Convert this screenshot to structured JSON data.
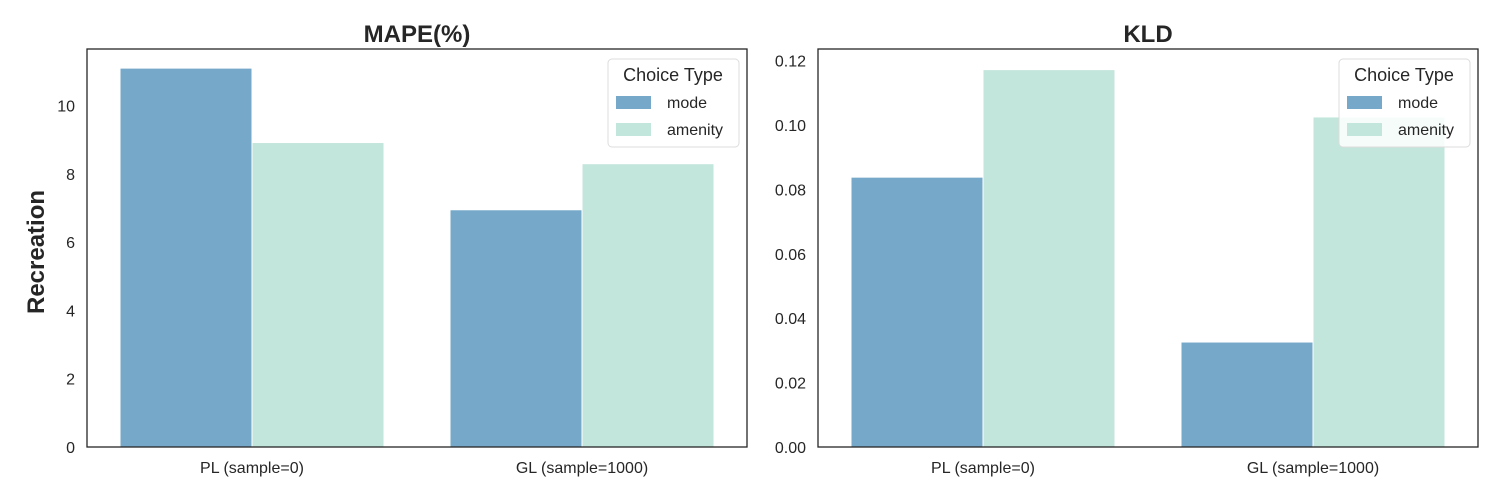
{
  "chart_data": [
    {
      "type": "bar",
      "title": "MAPE(%)",
      "ylabel": "Recreation",
      "xlabel": "",
      "categories": [
        "PL (sample=0)",
        "GL (sample=1000)"
      ],
      "series": [
        {
          "name": "mode",
          "values": [
            11.1,
            6.95
          ],
          "color": "#75a8c9"
        },
        {
          "name": "amenity",
          "values": [
            8.92,
            8.3
          ],
          "color": "#c3e6dc"
        }
      ],
      "ylim": [
        0,
        11.66
      ],
      "yticks": [
        0,
        2,
        4,
        6,
        8,
        10
      ],
      "ytick_labels": [
        "0",
        "2",
        "4",
        "6",
        "8",
        "10"
      ],
      "legend": {
        "title": "Choice Type",
        "position": "top-right"
      },
      "grid": false
    },
    {
      "type": "bar",
      "title": "KLD",
      "ylabel": "",
      "xlabel": "",
      "categories": [
        "PL (sample=0)",
        "GL (sample=1000)"
      ],
      "series": [
        {
          "name": "mode",
          "values": [
            0.0838,
            0.0326
          ],
          "color": "#75a8c9"
        },
        {
          "name": "amenity",
          "values": [
            0.1172,
            0.1025
          ],
          "color": "#c3e6dc"
        }
      ],
      "ylim": [
        0,
        0.1236
      ],
      "yticks": [
        0,
        0.02,
        0.04,
        0.06,
        0.08,
        0.1,
        0.12
      ],
      "ytick_labels": [
        "0.00",
        "0.02",
        "0.04",
        "0.06",
        "0.08",
        "0.10",
        "0.12"
      ],
      "legend": {
        "title": "Choice Type",
        "position": "top-right"
      },
      "grid": false
    }
  ]
}
